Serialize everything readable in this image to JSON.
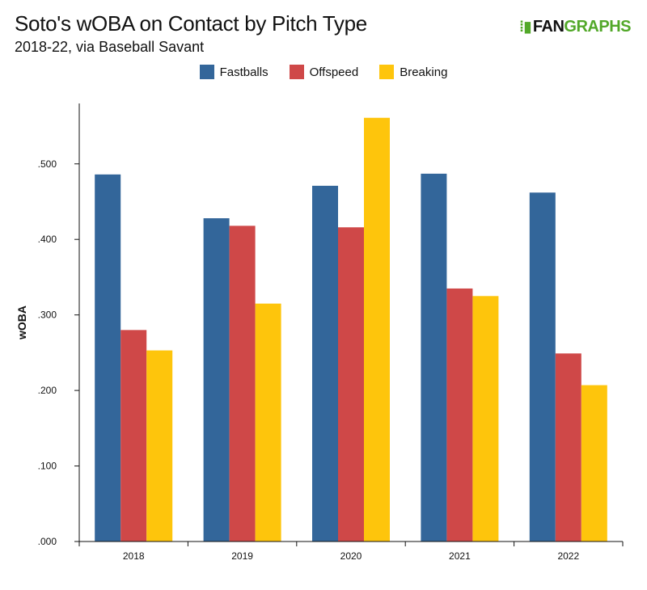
{
  "header": {
    "title": "Soto's wOBA on Contact by Pitch Type",
    "subtitle": "2018-22, via Baseball Savant"
  },
  "logo": {
    "fan": "FAN",
    "graphs": "GRAPHS"
  },
  "colors": {
    "fastballs": "#33669a",
    "offspeed": "#cf4848",
    "breaking": "#fec50c",
    "brand": "#52a829"
  },
  "chart_data": {
    "type": "bar",
    "title": "Soto's wOBA on Contact by Pitch Type",
    "subtitle": "2018-22, via Baseball Savant",
    "xlabel": "",
    "ylabel": "wOBA",
    "ylim": [
      0,
      0.58
    ],
    "yticks": [
      0,
      0.1,
      0.2,
      0.3,
      0.4,
      0.5
    ],
    "ytick_labels": [
      ".000",
      ".100",
      ".200",
      ".300",
      ".400",
      ".500"
    ],
    "categories": [
      "2018",
      "2019",
      "2020",
      "2021",
      "2022"
    ],
    "legend_position": "top",
    "grid": false,
    "series": [
      {
        "name": "Fastballs",
        "color": "#33669a",
        "values": [
          0.486,
          0.428,
          0.471,
          0.487,
          0.462
        ]
      },
      {
        "name": "Offspeed",
        "color": "#cf4848",
        "values": [
          0.28,
          0.418,
          0.416,
          0.335,
          0.249
        ]
      },
      {
        "name": "Breaking",
        "color": "#fec50c",
        "values": [
          0.253,
          0.315,
          0.561,
          0.325,
          0.207
        ]
      }
    ]
  }
}
